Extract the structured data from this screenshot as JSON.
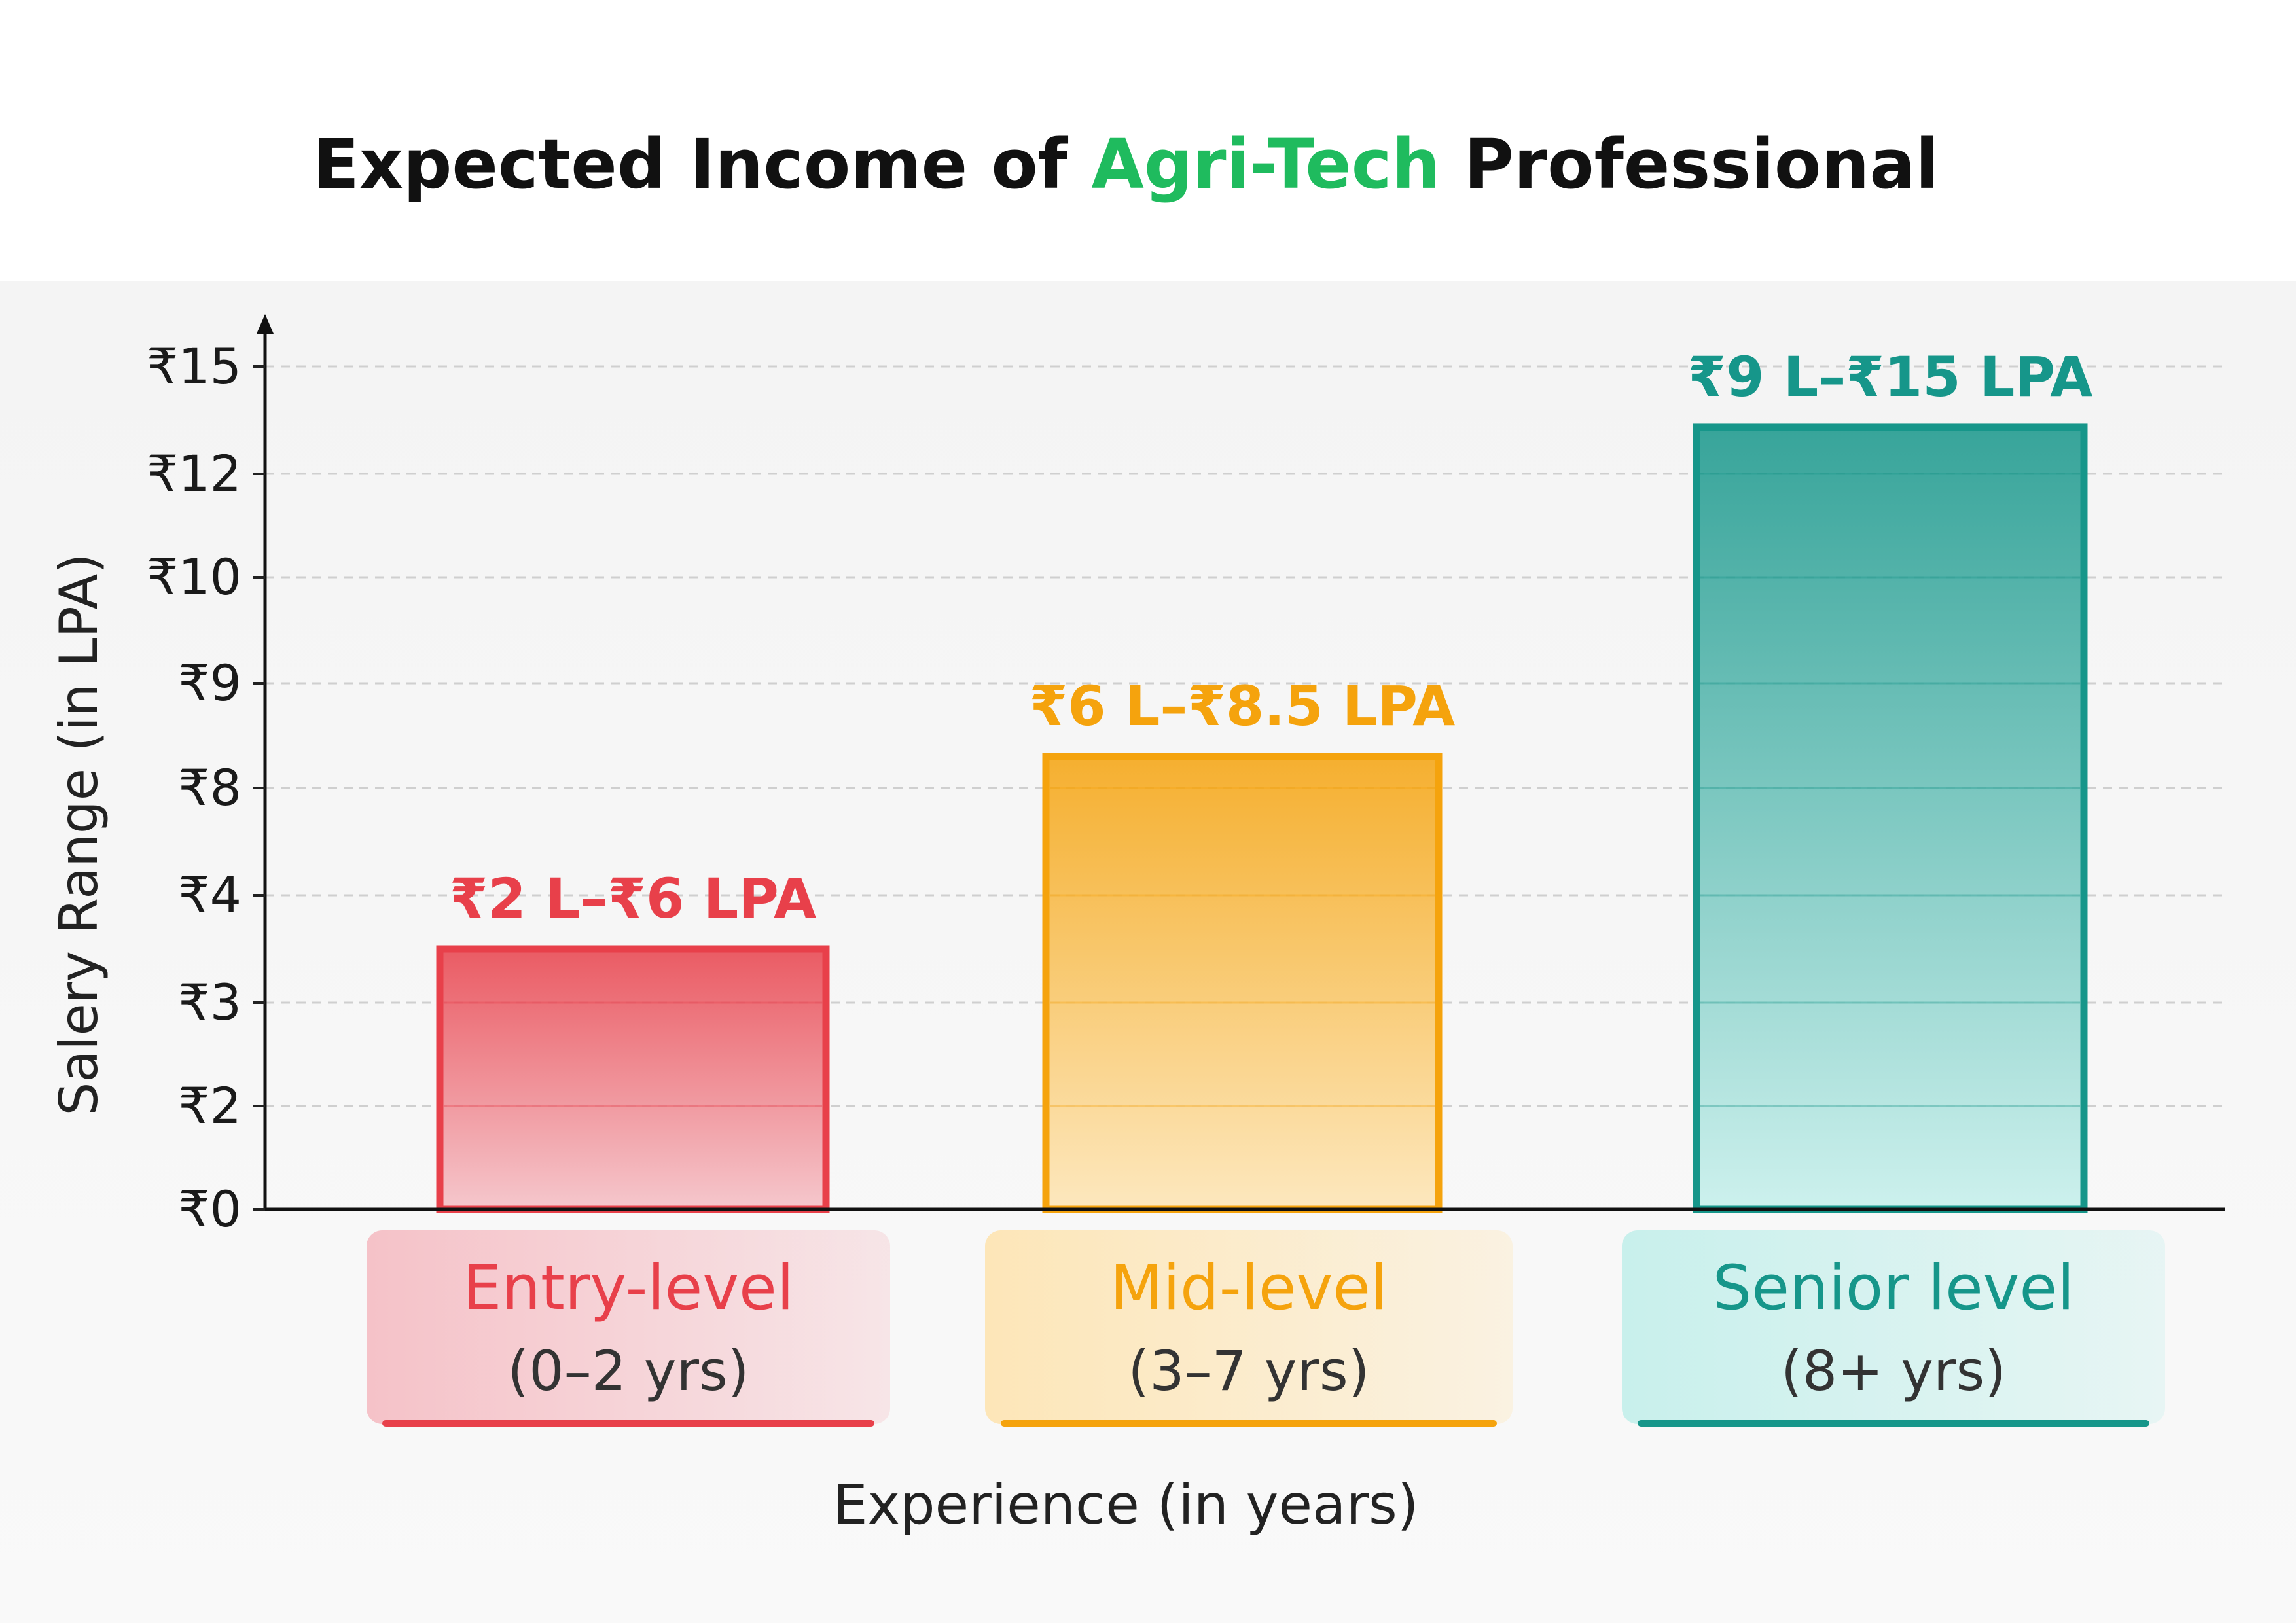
{
  "title": {
    "before": "Expected Income of ",
    "accent": "Agri-Tech",
    "after": " Professional",
    "accent_color": "#1fbb5e"
  },
  "chart_data": {
    "type": "bar",
    "title": "Expected Income of Agri-Tech Professional",
    "xlabel": "Experience (in years)",
    "ylabel": "Salery Range (in LPA)",
    "y_ticks": [
      "₹0",
      "₹2",
      "₹3",
      "₹4",
      "₹8",
      "₹9",
      "₹10",
      "₹12",
      "₹15"
    ],
    "grid": true,
    "categories": [
      {
        "name": "Entry-level",
        "years": "(0–2 yrs)",
        "value": 3.5,
        "label": "₹2 L–₹6 LPA",
        "color": "#e8404a",
        "light": "#f5c2c8"
      },
      {
        "name": "Mid-level",
        "years": "(3–7 yrs)",
        "value": 8.3,
        "label": "₹6 L–₹8.5 LPA",
        "color": "#f5a30d",
        "light": "#fde6b8"
      },
      {
        "name": "Senior level",
        "years": "(8+ yrs)",
        "value": 13.3,
        "label": "₹9 L–₹15 LPA",
        "color": "#16968a",
        "light": "#c8f0ec"
      }
    ]
  }
}
